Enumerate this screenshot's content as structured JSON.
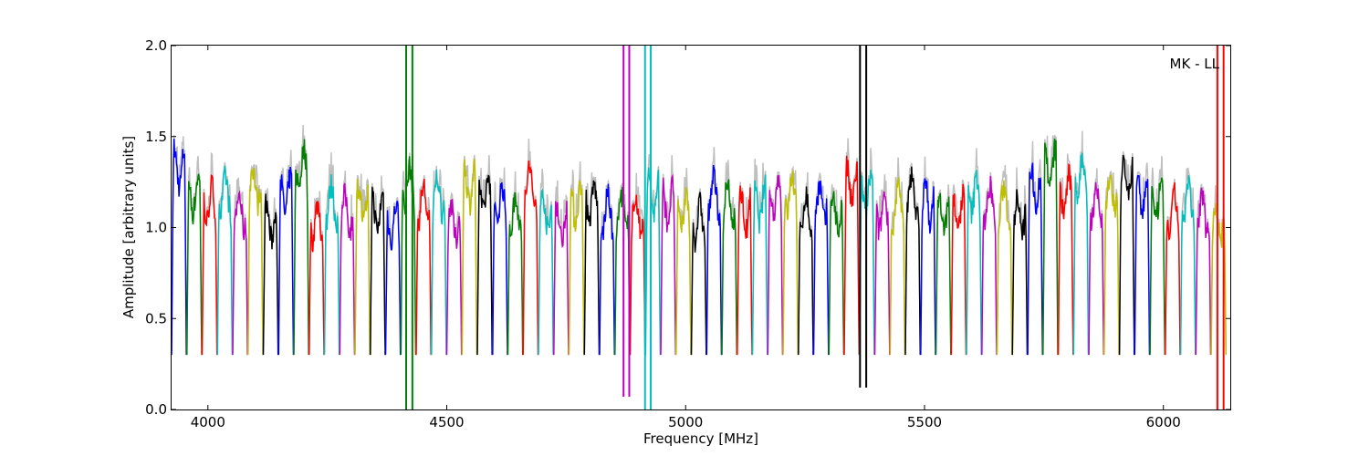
{
  "chart_data": {
    "type": "line",
    "xlabel": "Frequency [MHz]",
    "ylabel": "Amplitude [arbitrary units]",
    "annotation": "MK - LL",
    "xlim": [
      3924,
      6140
    ],
    "ylim": [
      0.0,
      2.0
    ],
    "xticks": [
      4000,
      4500,
      5000,
      5500,
      6000
    ],
    "yticks": [
      0.0,
      0.5,
      1.0,
      1.5,
      2.0
    ],
    "ytick_labels": [
      "0.0",
      "0.5",
      "1.0",
      "1.5",
      "2.0"
    ],
    "grid": false,
    "legend": "none",
    "background_series_color": "#bfbfbf",
    "color_cycle": [
      "#0000ff",
      "#007f00",
      "#ff0000",
      "#00bfbf",
      "#bf00bf",
      "#bfbf00",
      "#000000"
    ],
    "channels": {
      "first_start_mhz": 3924,
      "width_mhz": 32,
      "count": 69,
      "peak_levels": [
        1.45,
        1.3,
        1.25,
        1.3,
        1.2,
        1.35,
        1.15,
        1.3,
        1.45,
        1.15,
        1.25,
        1.2,
        1.25,
        1.2,
        1.15,
        1.35,
        1.25,
        1.3,
        1.15,
        1.35,
        1.3,
        1.25,
        1.2,
        1.35,
        1.2,
        1.15,
        1.25,
        1.25,
        1.2,
        1.2,
        1.2,
        1.3,
        1.25,
        1.2,
        1.15,
        1.3,
        1.25,
        1.2,
        1.25,
        1.3,
        1.3,
        1.2,
        1.25,
        1.2,
        1.35,
        1.3,
        1.2,
        1.25,
        1.3,
        1.25,
        1.2,
        1.2,
        1.3,
        1.25,
        1.25,
        1.2,
        1.35,
        1.45,
        1.3,
        1.4,
        1.25,
        1.3,
        1.4,
        1.3,
        1.25,
        1.2,
        1.25,
        1.2,
        1.15
      ]
    },
    "rfi_spikes": [
      {
        "x": 4415,
        "ymin": 0.0,
        "ymax": 2.0,
        "color": "#007f00"
      },
      {
        "x": 4428,
        "ymin": 0.0,
        "ymax": 2.0,
        "color": "#007f00"
      },
      {
        "x": 4870,
        "ymin": 0.07,
        "ymax": 2.0,
        "color": "#bf00bf"
      },
      {
        "x": 4882,
        "ymin": 0.07,
        "ymax": 2.0,
        "color": "#bf00bf"
      },
      {
        "x": 4915,
        "ymin": 0.0,
        "ymax": 2.0,
        "color": "#00bfbf"
      },
      {
        "x": 4927,
        "ymin": 0.0,
        "ymax": 2.0,
        "color": "#00bfbf"
      },
      {
        "x": 5365,
        "ymin": 0.12,
        "ymax": 2.0,
        "color": "#000000"
      },
      {
        "x": 5378,
        "ymin": 0.12,
        "ymax": 2.0,
        "color": "#000000"
      },
      {
        "x": 6113,
        "ymin": 0.0,
        "ymax": 2.0,
        "color": "#ff0000"
      },
      {
        "x": 6126,
        "ymin": 0.0,
        "ymax": 2.0,
        "color": "#ff0000"
      }
    ]
  }
}
